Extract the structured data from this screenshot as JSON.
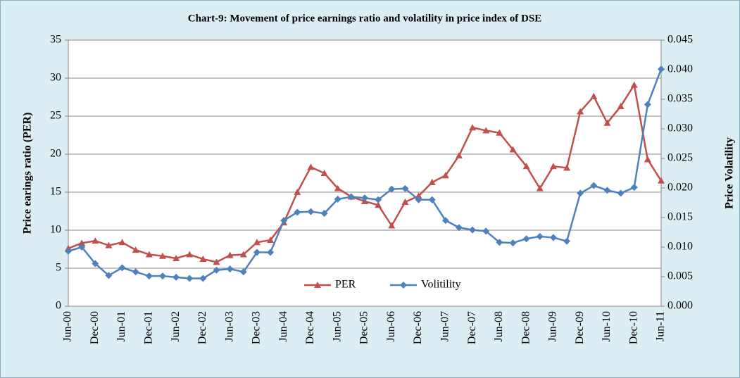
{
  "chart_data": {
    "type": "line",
    "title": "Chart-9: Movement of price earnings ratio and volatility in price index of DSE",
    "ylabel": "Price earings ratio (PER)",
    "y2label": "Price Volatility",
    "categories": [
      "Jun-00",
      null,
      "Dec-00",
      null,
      "Jun-01",
      null,
      "Dec-01",
      null,
      "Jun-02",
      null,
      "Dec-02",
      null,
      "Jun-03",
      null,
      "Dec-03",
      null,
      "Jun-04",
      null,
      "Dec-04",
      null,
      "Jun-05",
      null,
      "Dec-05",
      null,
      "Jun-06",
      null,
      "Dec-06",
      null,
      "Jun-07",
      null,
      "Dec-07",
      null,
      "Jun-08",
      null,
      "Dec-08",
      null,
      "Jun-09",
      null,
      "Dec-09",
      null,
      "Jun-10",
      null,
      "Dec-10",
      null,
      "Jun-11"
    ],
    "series": [
      {
        "name": "PER",
        "color": "#c0504d",
        "marker": "triangle",
        "values": [
          7.6,
          8.3,
          8.6,
          8.0,
          8.4,
          7.4,
          6.8,
          6.6,
          6.3,
          6.8,
          6.2,
          5.8,
          6.7,
          6.8,
          8.4,
          8.7,
          11.0,
          15.0,
          18.3,
          17.5,
          15.5,
          14.4,
          13.8,
          13.3,
          10.6,
          13.7,
          14.5,
          16.3,
          17.2,
          19.8,
          23.5,
          23.1,
          22.8,
          20.6,
          18.4,
          15.5,
          18.4,
          18.2,
          25.6,
          27.6,
          24.1,
          26.3,
          29.1,
          19.3,
          16.5
        ]
      },
      {
        "name": "Volitility",
        "color": "#4f81bd",
        "marker": "diamond",
        "axis": "y2",
        "values": [
          0.0093,
          0.01,
          0.0072,
          0.0052,
          0.0065,
          0.0058,
          0.0051,
          0.0051,
          0.0049,
          0.0047,
          0.0047,
          0.0061,
          0.0063,
          0.0058,
          0.0091,
          0.0091,
          0.0145,
          0.0159,
          0.016,
          0.0157,
          0.0181,
          0.0185,
          0.0183,
          0.018,
          0.0198,
          0.0199,
          0.018,
          0.018,
          0.0145,
          0.0133,
          0.0129,
          0.0127,
          0.0108,
          0.0107,
          0.0114,
          0.0118,
          0.0116,
          0.011,
          0.0191,
          0.0204,
          0.0196,
          0.0191,
          0.0201,
          0.0341,
          0.0401
        ]
      }
    ],
    "ylim": [
      0,
      35
    ],
    "yticks": [
      0,
      5,
      10,
      15,
      20,
      25,
      30,
      35
    ],
    "y2lim": [
      0,
      0.045
    ],
    "y2ticks": [
      {
        "value": 0,
        "label": "0.000"
      },
      0.005,
      {
        "value": 0.01,
        "label": "0.010"
      },
      0.015,
      {
        "value": 0.02,
        "label": "0.020"
      },
      0.025,
      {
        "value": 0.03,
        "label": "0.030"
      },
      0.035,
      {
        "value": 0.04,
        "label": "0.040"
      },
      0.045
    ],
    "grid": true,
    "legend": "bottom"
  }
}
